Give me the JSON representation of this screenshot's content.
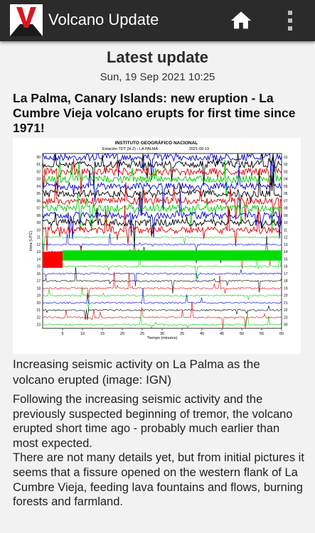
{
  "app": {
    "title": "Volcano Update",
    "logo_letter": "V",
    "icons": {
      "home": "home-icon",
      "menu": "more-vert-icon"
    }
  },
  "page": {
    "heading": "Latest update",
    "date": "Sun, 19 Sep 2021 10:25"
  },
  "article": {
    "title": "La Palma, Canary Islands: new eruption - La Cumbre Vieja volcano erupts for first time since 1971!",
    "caption": "Increasing seismic activity on La Palma as the volcano erupted (image: IGN)",
    "paragraphs": [
      "Following the increasing seismic activity and the previously suspected beginning of tremor, the volcano erupted short time ago - probably much earlier than most expected.",
      "There are not many details yet, but from initial pictures it seems that a fissure opened on the western flank of La Cumbre Vieja, feeding lava fountains and flows, burning forests and farmland."
    ]
  },
  "figure": {
    "title": "INSTITUTO GEOGRÁFICO NACIONAL",
    "subtitle": "Estación TDT (H.Z) - LA PALMA",
    "date": "2021-09-19",
    "xlabel": "Tiempo (minutos)",
    "ylabel": "Hora (UTC)",
    "x_ticks": [
      "5",
      "10",
      "15",
      "20",
      "25",
      "30",
      "35",
      "40",
      "45",
      "50",
      "55",
      "60"
    ],
    "y_ticks_left": [
      "00",
      "01",
      "02",
      "03",
      "04",
      "05",
      "06",
      "07",
      "08",
      "09",
      "10",
      "11",
      "12",
      "13",
      "14",
      "15",
      "16",
      "17",
      "18",
      "19",
      "20",
      "21",
      "22",
      "23"
    ],
    "y_ticks_right": [
      "01",
      "02",
      "03",
      "04",
      "05",
      "06",
      "07",
      "08",
      "09",
      "10",
      "11",
      "12",
      "13",
      "14",
      "15",
      "16",
      "17",
      "18",
      "19",
      "20",
      "21",
      "22",
      "23",
      "00"
    ],
    "trace_colors": [
      "#0000cc",
      "#000000",
      "#dd0000",
      "#00cc00"
    ]
  }
}
